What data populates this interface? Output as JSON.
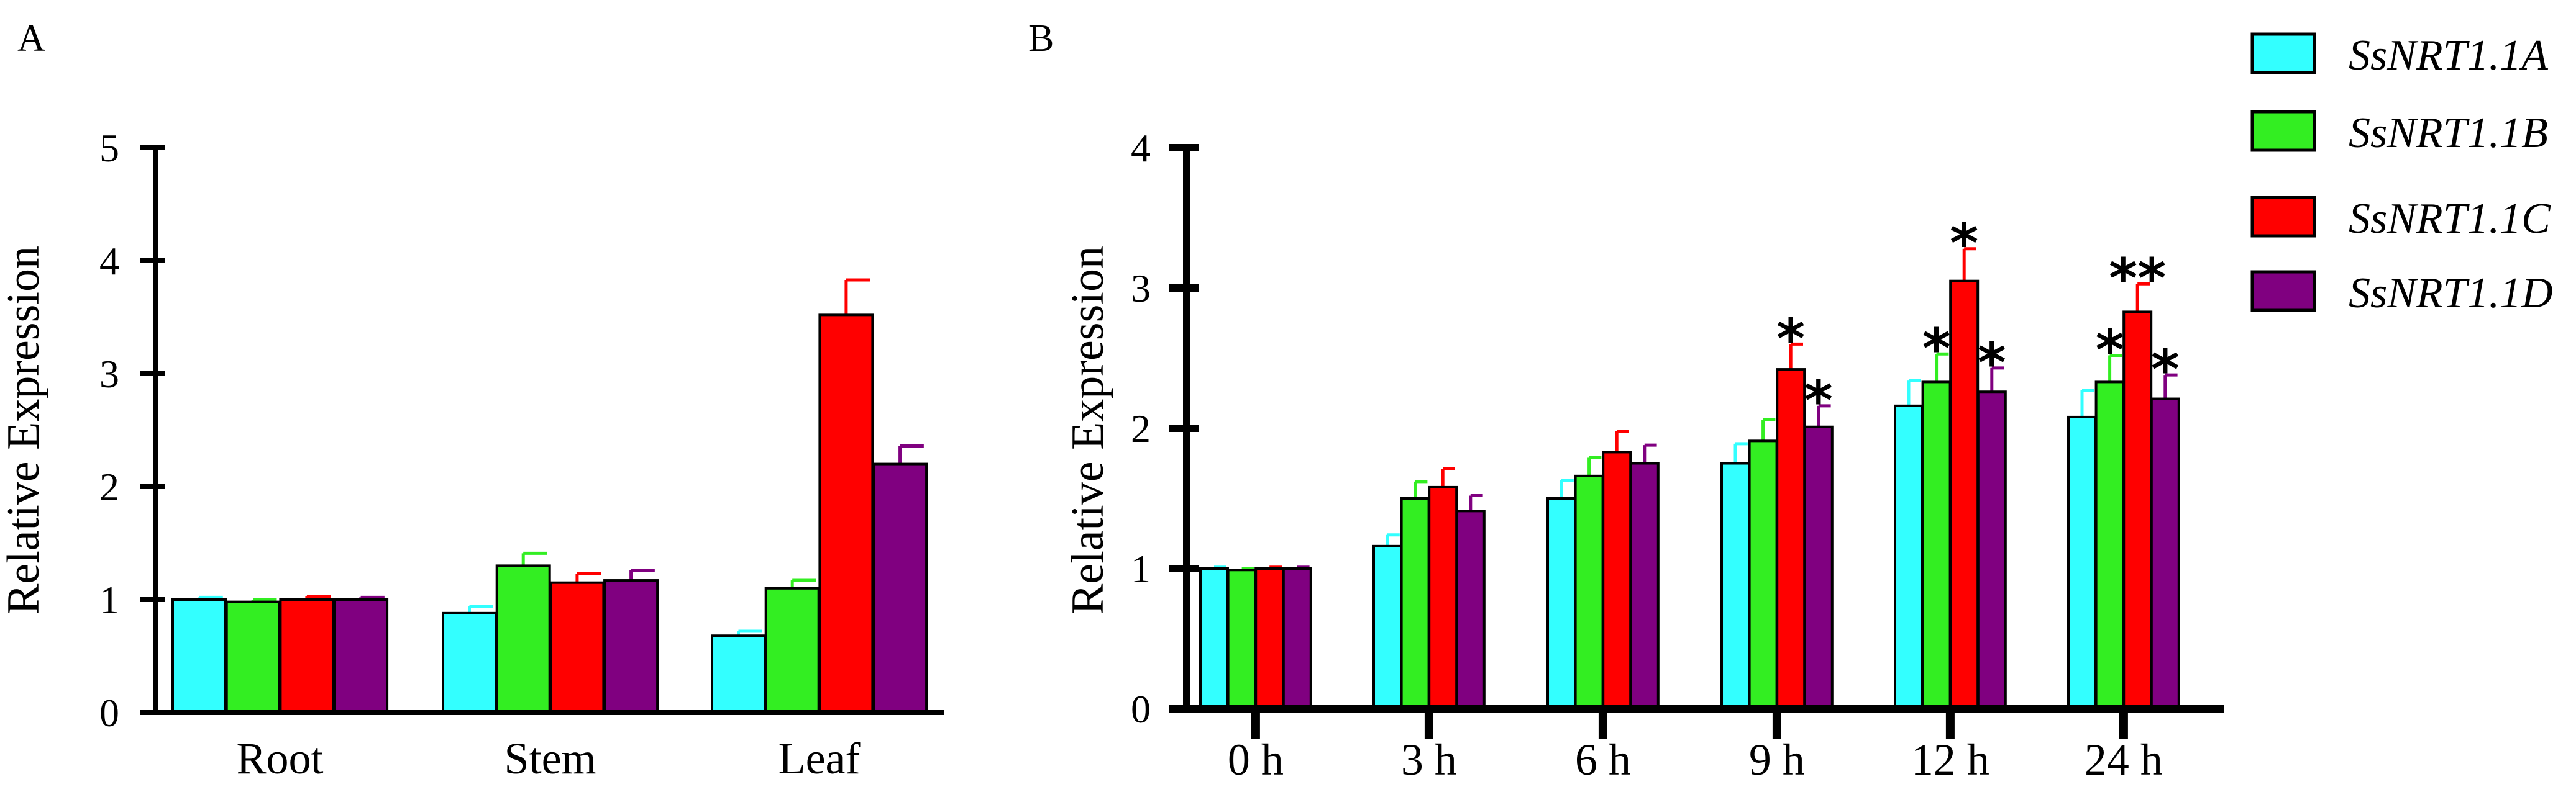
{
  "chart_data": [
    {
      "panel": "A",
      "type": "bar",
      "ylabel": "Relative Expression",
      "xlabel": "",
      "ylim": [
        0,
        5
      ],
      "yticks": [
        "0",
        "1",
        "2",
        "3",
        "4",
        "5"
      ],
      "categories": [
        "Root",
        "Stem",
        "Leaf"
      ],
      "series": [
        {
          "name": "SsNRT1.1A",
          "values": [
            1.0,
            0.88,
            0.68
          ],
          "errors": [
            0.02,
            0.06,
            0.04
          ],
          "significance": [
            "",
            "",
            ""
          ]
        },
        {
          "name": "SsNRT1.1B",
          "values": [
            0.98,
            1.3,
            1.1
          ],
          "errors": [
            0.02,
            0.11,
            0.07
          ],
          "significance": [
            "",
            "",
            ""
          ]
        },
        {
          "name": "SsNRT1.1C",
          "values": [
            1.0,
            1.15,
            3.52
          ],
          "errors": [
            0.03,
            0.08,
            0.31
          ],
          "significance": [
            "",
            "",
            ""
          ]
        },
        {
          "name": "SsNRT1.1D",
          "values": [
            1.0,
            1.17,
            2.2
          ],
          "errors": [
            0.02,
            0.09,
            0.16
          ],
          "significance": [
            "",
            "",
            ""
          ]
        }
      ]
    },
    {
      "panel": "B",
      "type": "bar",
      "ylabel": "Relative Expression",
      "xlabel": "",
      "ylim": [
        0,
        4
      ],
      "yticks": [
        "0",
        "1",
        "2",
        "3",
        "4"
      ],
      "categories": [
        "0 h",
        "3 h",
        "6 h",
        "9 h",
        "12 h",
        "24 h"
      ],
      "series": [
        {
          "name": "SsNRT1.1A",
          "values": [
            1.0,
            1.16,
            1.5,
            1.75,
            2.16,
            2.08
          ],
          "errors": [
            0.01,
            0.08,
            0.13,
            0.14,
            0.18,
            0.19
          ],
          "significance": [
            "",
            "",
            "",
            "",
            "",
            ""
          ]
        },
        {
          "name": "SsNRT1.1B",
          "values": [
            0.99,
            1.5,
            1.66,
            1.91,
            2.33,
            2.33
          ],
          "errors": [
            0.01,
            0.12,
            0.13,
            0.15,
            0.2,
            0.19
          ],
          "significance": [
            "",
            "",
            "",
            "",
            "*",
            "*"
          ]
        },
        {
          "name": "SsNRT1.1C",
          "values": [
            1.0,
            1.58,
            1.83,
            2.42,
            3.05,
            2.83
          ],
          "errors": [
            0.01,
            0.13,
            0.15,
            0.18,
            0.23,
            0.2
          ],
          "significance": [
            "",
            "",
            "",
            "*",
            "*",
            "**"
          ]
        },
        {
          "name": "SsNRT1.1D",
          "values": [
            1.0,
            1.41,
            1.75,
            2.01,
            2.26,
            2.21
          ],
          "errors": [
            0.01,
            0.11,
            0.13,
            0.15,
            0.17,
            0.17
          ],
          "significance": [
            "",
            "",
            "",
            "*",
            "*",
            "*"
          ]
        }
      ]
    }
  ],
  "legend": {
    "items": [
      {
        "name": "SsNRT1.1A",
        "color": "#33ffff"
      },
      {
        "name": "SsNRT1.1B",
        "color": "#33ee22"
      },
      {
        "name": "SsNRT1.1C",
        "color": "#ff0000"
      },
      {
        "name": "SsNRT1.1D",
        "color": "#800080"
      }
    ]
  },
  "colors": {
    "series": [
      "#33ffff",
      "#33ee22",
      "#ff0000",
      "#800080"
    ],
    "axis": "#000000"
  }
}
